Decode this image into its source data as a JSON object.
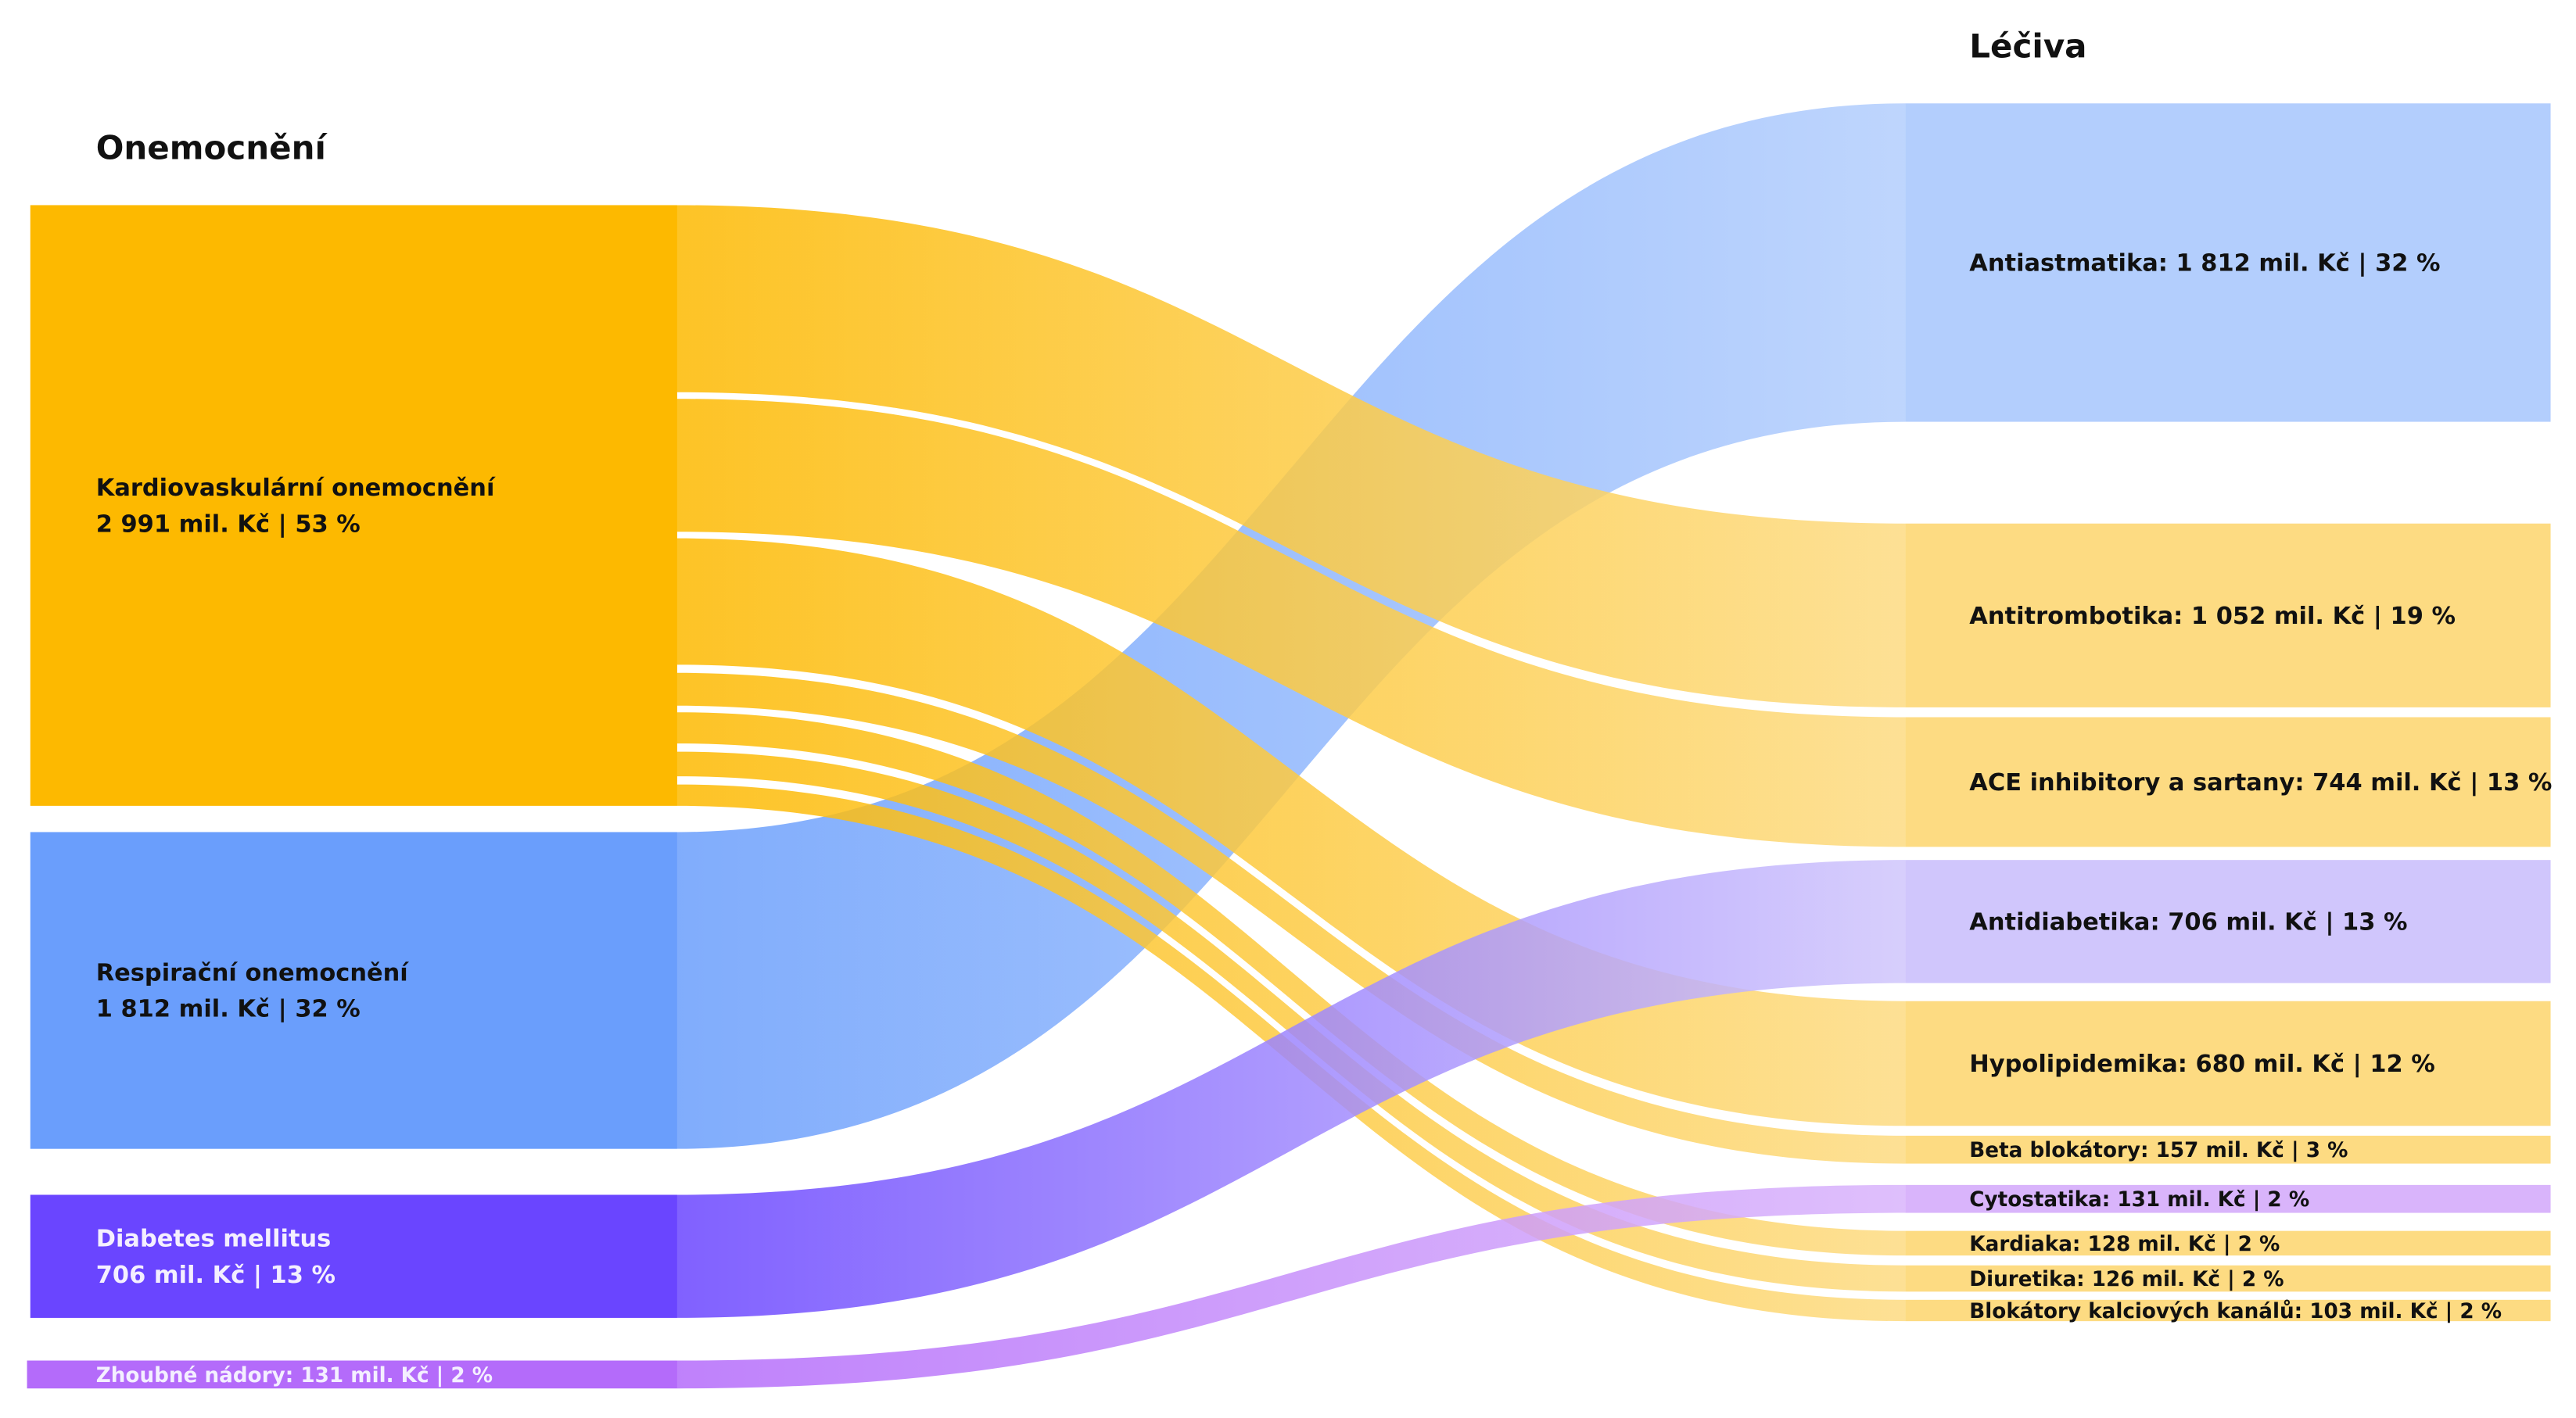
{
  "chart_data": {
    "type": "sankey",
    "unit": "mil. Kč",
    "left_title": "Onemocnění",
    "right_title": "Léčiva",
    "sources": [
      {
        "id": "kardio",
        "name": "Kardiovaskulární onemocnění",
        "value_label": "2 991 mil. Kč | 53 %",
        "value": 2991,
        "pct": 53,
        "color": "#FDB900",
        "label_color": "dark"
      },
      {
        "id": "resp",
        "name": "Respirační onemocnění",
        "value_label": "1 812 mil. Kč | 32 %",
        "value": 1812,
        "pct": 32,
        "color": "#6A9EFC",
        "label_color": "dark"
      },
      {
        "id": "diab",
        "name": "Diabetes mellitus",
        "value_label": "706 mil. Kč | 13 %",
        "value": 706,
        "pct": 13,
        "color": "#6A45FF",
        "label_color": "light"
      },
      {
        "id": "zhoub",
        "label": "Zhoubné nádory: 131 mil. Kč | 2 %",
        "value": 131,
        "pct": 2,
        "color": "#B46BFA",
        "label_color": "light"
      }
    ],
    "targets": [
      {
        "id": "antiast",
        "label": "Antiastmatika: 1 812 mil. Kč | 32 %",
        "value": 1812,
        "pct": 32,
        "color": "#B3CEFD"
      },
      {
        "id": "antitromb",
        "label": "Antitrombotika: 1 052 mil. Kč | 19 %",
        "value": 1052,
        "pct": 19,
        "color": "#FDDB82"
      },
      {
        "id": "ace",
        "label": "ACE inhibitory a sartany: 744 mil. Kč | 13 %",
        "value": 744,
        "pct": 13,
        "color": "#FDDB82"
      },
      {
        "id": "antidiab",
        "label": "Antidiabetika: 706 mil. Kč | 13 %",
        "value": 706,
        "pct": 13,
        "color": "#D0C6FC"
      },
      {
        "id": "hypolip",
        "label": "Hypolipidemika: 680 mil. Kč | 12 %",
        "value": 680,
        "pct": 12,
        "color": "#FDDB82"
      },
      {
        "id": "beta",
        "label": "Beta blokátory: 157 mil. Kč | 3 %",
        "value": 157,
        "pct": 3,
        "color": "#FDDB82"
      },
      {
        "id": "cyto",
        "label": "Cytostatika: 131 mil. Kč | 2 %",
        "value": 131,
        "pct": 2,
        "color": "#D9B4FB"
      },
      {
        "id": "kardiaka",
        "label": "Kardiaka: 128 mil. Kč | 2 %",
        "value": 128,
        "pct": 2,
        "color": "#FDDB82"
      },
      {
        "id": "diuret",
        "label": "Diuretika: 126 mil. Kč | 2 %",
        "value": 126,
        "pct": 2,
        "color": "#FDDB82"
      },
      {
        "id": "blokkal",
        "label": "Blokátory kalciových kanálů: 103 mil. Kč | 2 %",
        "value": 103,
        "pct": 2,
        "color": "#FDDB82"
      }
    ],
    "links": [
      {
        "source": "resp",
        "target": "antiast",
        "value": 1812
      },
      {
        "source": "kardio",
        "target": "antitromb",
        "value": 1052
      },
      {
        "source": "kardio",
        "target": "ace",
        "value": 744
      },
      {
        "source": "kardio",
        "target": "hypolip",
        "value": 680
      },
      {
        "source": "kardio",
        "target": "beta",
        "value": 157
      },
      {
        "source": "kardio",
        "target": "kardiaka",
        "value": 128
      },
      {
        "source": "kardio",
        "target": "diuret",
        "value": 126
      },
      {
        "source": "kardio",
        "target": "blokkal",
        "value": 103
      },
      {
        "source": "diab",
        "target": "antidiab",
        "value": 706
      },
      {
        "source": "zhoub",
        "target": "cyto",
        "value": 131
      }
    ]
  }
}
